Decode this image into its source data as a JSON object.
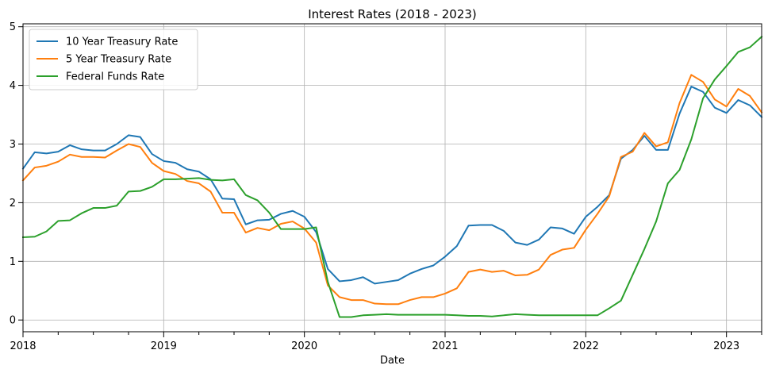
{
  "chart_data": {
    "type": "line",
    "title": "Interest Rates (2018 - 2023)",
    "xlabel": "Date",
    "ylabel": "",
    "x_range": [
      "2018-01",
      "2023-04"
    ],
    "ylim": [
      -0.2,
      5.05
    ],
    "grid": true,
    "legend_position": "top-left",
    "x_ticks": [
      {
        "label": "2018",
        "month": 0
      },
      {
        "label": "2019",
        "month": 12
      },
      {
        "label": "2020",
        "month": 24
      },
      {
        "label": "2021",
        "month": 36
      },
      {
        "label": "2022",
        "month": 48
      },
      {
        "label": "2023",
        "month": 60
      }
    ],
    "y_ticks": [
      0,
      1,
      2,
      3,
      4,
      5
    ],
    "dates": [
      "2018-01",
      "2018-02",
      "2018-03",
      "2018-04",
      "2018-05",
      "2018-06",
      "2018-07",
      "2018-08",
      "2018-09",
      "2018-10",
      "2018-11",
      "2018-12",
      "2019-01",
      "2019-02",
      "2019-03",
      "2019-04",
      "2019-05",
      "2019-06",
      "2019-07",
      "2019-08",
      "2019-09",
      "2019-10",
      "2019-11",
      "2019-12",
      "2020-01",
      "2020-02",
      "2020-03",
      "2020-04",
      "2020-05",
      "2020-06",
      "2020-07",
      "2020-08",
      "2020-09",
      "2020-10",
      "2020-11",
      "2020-12",
      "2021-01",
      "2021-02",
      "2021-03",
      "2021-04",
      "2021-05",
      "2021-06",
      "2021-07",
      "2021-08",
      "2021-09",
      "2021-10",
      "2021-11",
      "2021-12",
      "2022-01",
      "2022-02",
      "2022-03",
      "2022-04",
      "2022-05",
      "2022-06",
      "2022-07",
      "2022-08",
      "2022-09",
      "2022-10",
      "2022-11",
      "2022-12",
      "2023-01",
      "2023-02",
      "2023-03",
      "2023-04"
    ],
    "series": [
      {
        "name": "10 Year Treasury Rate",
        "color": "#1f77b4",
        "values": [
          2.58,
          2.86,
          2.84,
          2.87,
          2.98,
          2.91,
          2.89,
          2.89,
          3.0,
          3.15,
          3.12,
          2.83,
          2.71,
          2.68,
          2.57,
          2.53,
          2.4,
          2.07,
          2.06,
          1.63,
          1.7,
          1.71,
          1.81,
          1.86,
          1.76,
          1.5,
          0.87,
          0.66,
          0.68,
          0.73,
          0.62,
          0.65,
          0.68,
          0.79,
          0.87,
          0.93,
          1.08,
          1.26,
          1.61,
          1.62,
          1.62,
          1.52,
          1.32,
          1.28,
          1.37,
          1.58,
          1.56,
          1.47,
          1.76,
          1.93,
          2.13,
          2.75,
          2.9,
          3.14,
          2.9,
          2.9,
          3.52,
          3.98,
          3.89,
          3.62,
          3.53,
          3.75,
          3.66,
          3.46
        ]
      },
      {
        "name": "5 Year Treasury Rate",
        "color": "#ff7f0e",
        "values": [
          2.38,
          2.6,
          2.63,
          2.7,
          2.82,
          2.78,
          2.78,
          2.77,
          2.89,
          3.0,
          2.95,
          2.68,
          2.54,
          2.49,
          2.37,
          2.33,
          2.19,
          1.83,
          1.83,
          1.49,
          1.57,
          1.53,
          1.64,
          1.68,
          1.56,
          1.32,
          0.59,
          0.39,
          0.34,
          0.34,
          0.28,
          0.27,
          0.27,
          0.34,
          0.39,
          0.39,
          0.45,
          0.54,
          0.82,
          0.86,
          0.82,
          0.84,
          0.76,
          0.77,
          0.86,
          1.11,
          1.2,
          1.23,
          1.54,
          1.81,
          2.11,
          2.78,
          2.87,
          3.19,
          2.96,
          3.03,
          3.7,
          4.18,
          4.06,
          3.76,
          3.64,
          3.94,
          3.82,
          3.54
        ]
      },
      {
        "name": "Federal Funds Rate",
        "color": "#2ca02c",
        "values": [
          1.41,
          1.42,
          1.51,
          1.69,
          1.7,
          1.82,
          1.91,
          1.91,
          1.95,
          2.19,
          2.2,
          2.27,
          2.4,
          2.4,
          2.41,
          2.42,
          2.39,
          2.38,
          2.4,
          2.13,
          2.04,
          1.83,
          1.55,
          1.55,
          1.55,
          1.58,
          0.65,
          0.05,
          0.05,
          0.08,
          0.09,
          0.1,
          0.09,
          0.09,
          0.09,
          0.09,
          0.09,
          0.08,
          0.07,
          0.07,
          0.06,
          0.08,
          0.1,
          0.09,
          0.08,
          0.08,
          0.08,
          0.08,
          0.08,
          0.08,
          0.2,
          0.33,
          0.77,
          1.21,
          1.68,
          2.33,
          2.56,
          3.08,
          3.78,
          4.1,
          4.33,
          4.57,
          4.65,
          4.83
        ]
      }
    ]
  }
}
